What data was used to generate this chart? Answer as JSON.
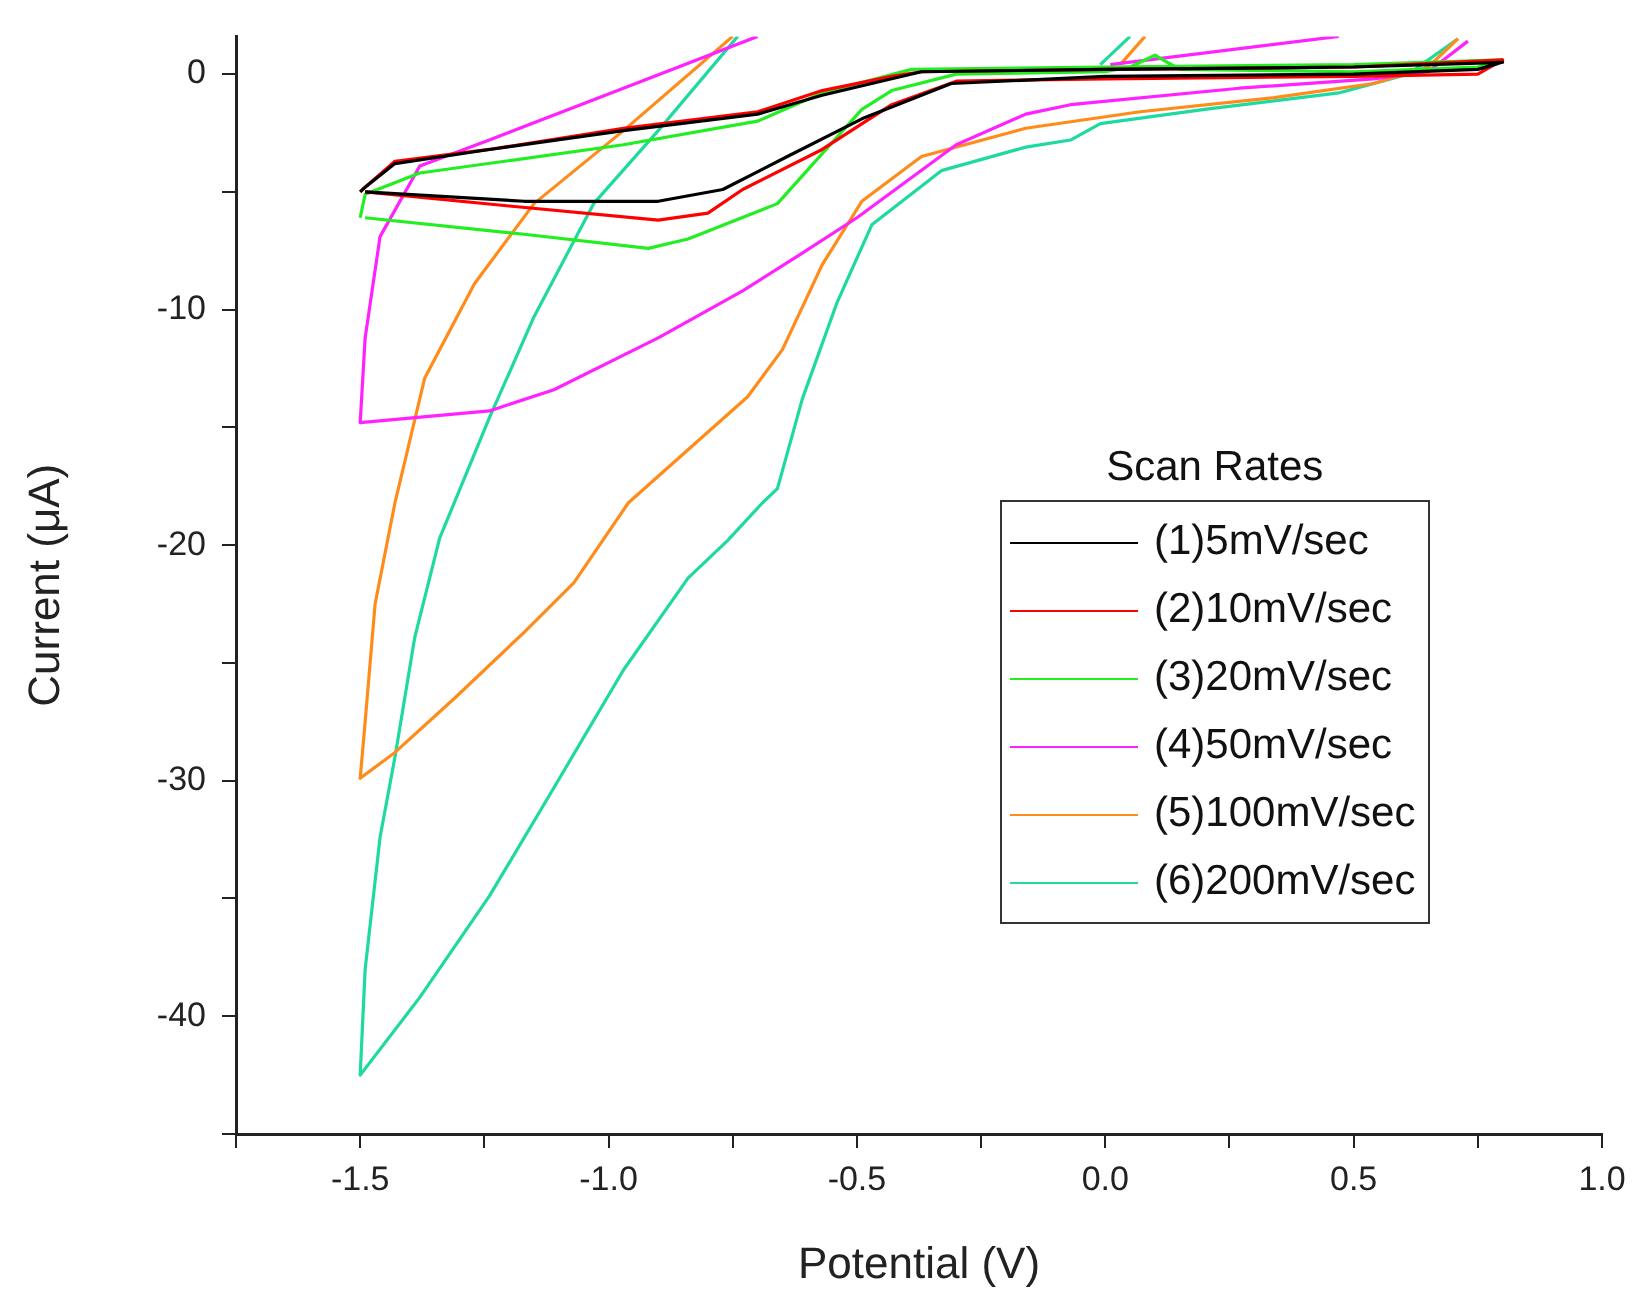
{
  "chart_data": {
    "type": "line",
    "xlabel": "Potential (V)",
    "ylabel": "Current (μA)",
    "legend_title": "Scan Rates",
    "legend": "right",
    "grid": false,
    "marker": "none",
    "line_style": "solid",
    "xlim": [
      -1.75,
      1.0
    ],
    "ylim": [
      -45,
      1.6
    ],
    "xticks": [
      {
        "value": -1.75,
        "label": null
      },
      -1.5,
      {
        "value": -1.25,
        "label": null
      },
      {
        "value": -1,
        "label": "-1.0"
      },
      {
        "value": -0.75,
        "label": null
      },
      -0.5,
      {
        "value": -0.25,
        "label": null
      },
      {
        "value": 0,
        "label": "0.0"
      },
      {
        "value": 0.25,
        "label": null
      },
      0.5,
      {
        "value": 0.75,
        "label": null
      },
      {
        "value": 1,
        "label": "1.0"
      }
    ],
    "yticks": [
      {
        "value": -45,
        "label": null
      },
      -40,
      {
        "value": -35,
        "label": null
      },
      -30,
      {
        "value": -25,
        "label": null
      },
      -20,
      {
        "value": -15,
        "label": null
      },
      -10,
      {
        "value": -5,
        "label": null
      },
      0
    ],
    "series": [
      {
        "name": "(1)5mV/sec",
        "color": "#000000",
        "x": [
          -1.5,
          -1.49,
          -1.43,
          -1.24,
          -0.97,
          -0.7,
          -0.57,
          -0.43,
          -0.37,
          0,
          0.5,
          0.8,
          0.75,
          0.5,
          0,
          -0.31,
          -0.49,
          -0.64,
          -0.77,
          -0.9,
          -1.17,
          -1.49
        ],
        "values": [
          -5.0,
          -4.8,
          -3.8,
          -3.2,
          -2.4,
          -1.7,
          -0.9,
          -0.2,
          0.1,
          0.2,
          0.3,
          0.5,
          0.2,
          0.0,
          -0.1,
          -0.4,
          -1.9,
          -3.5,
          -4.9,
          -5.4,
          -5.4,
          -5.0
        ]
      },
      {
        "name": "(2)10mV/sec",
        "color": "#ff0000",
        "x": [
          -1.5,
          -1.49,
          -1.43,
          -1.24,
          -0.97,
          -0.7,
          -0.57,
          -0.43,
          -0.37,
          0,
          0.5,
          0.8,
          0.75,
          0.5,
          0,
          -0.3,
          -0.43,
          -0.57,
          -0.73,
          -0.8,
          -0.9,
          -1.2,
          -1.49
        ],
        "values": [
          -5.0,
          -4.8,
          -3.7,
          -3.2,
          -2.3,
          -1.6,
          -0.7,
          -0.1,
          0.1,
          0.2,
          0.3,
          0.6,
          0.0,
          -0.1,
          -0.2,
          -0.3,
          -1.3,
          -3.2,
          -4.9,
          -5.9,
          -6.2,
          -5.6,
          -5.0
        ]
      },
      {
        "name": "(3)20mV/sec",
        "color": "#22ee22",
        "x": [
          -1.5,
          -1.49,
          -1.38,
          -0.97,
          -0.7,
          -0.57,
          -0.39,
          0,
          0.5,
          0.8,
          0.75,
          0.5,
          0.15,
          0.1,
          0.05,
          0,
          -0.3,
          -0.43,
          -0.49,
          -0.66,
          -0.84,
          -0.92,
          -1.17,
          -1.49
        ],
        "values": [
          -6.1,
          -5.1,
          -4.2,
          -3.0,
          -2.0,
          -0.8,
          0.2,
          0.3,
          0.4,
          0.6,
          0.3,
          0.1,
          0.2,
          0.8,
          0.3,
          0.1,
          0.0,
          -0.7,
          -1.5,
          -5.5,
          -7.0,
          -7.4,
          -6.8,
          -6.1
        ]
      },
      {
        "name": "(4)50mV/sec",
        "color": "#ff22ff",
        "x": [
          -0.7,
          -0.97,
          -1.24,
          -1.38,
          -1.46,
          -1.49,
          -1.5,
          -1.24,
          -1.11,
          -0.9,
          -0.73,
          -0.61,
          -0.5,
          -0.3,
          -0.16,
          -0.07,
          0.27,
          0.54,
          0.65,
          0.73
        ],
        "values": [
          1.6,
          -0.6,
          -2.8,
          -3.9,
          -6.9,
          -11.2,
          -14.8,
          -14.3,
          -13.4,
          -11.2,
          -9.2,
          -7.6,
          -6.1,
          -3.0,
          -1.7,
          -1.3,
          -0.6,
          -0.2,
          0.1,
          1.4
        ]
      },
      {
        "color": "#ff22ff",
        "x": [
          0.01,
          0.47
        ],
        "values": [
          0.4,
          1.6
        ]
      },
      {
        "name": "(5)100mV/sec",
        "color": "#ff8c1a",
        "x": [
          -0.75,
          -0.97,
          -1.15,
          -1.27,
          -1.37,
          -1.43,
          -1.47,
          -1.49,
          -1.5,
          -1.43,
          -1.31,
          -1.17,
          -1.07,
          -0.96,
          -0.72,
          -0.65,
          -0.57,
          -0.49,
          -0.37,
          -0.16,
          0.07,
          0.34,
          0.54,
          0.65,
          0.71
        ],
        "values": [
          1.6,
          -2.4,
          -5.5,
          -8.9,
          -12.9,
          -18.2,
          -22.5,
          -27.5,
          -29.9,
          -28.8,
          -26.5,
          -23.7,
          -21.6,
          -18.2,
          -13.7,
          -11.7,
          -8.1,
          -5.4,
          -3.5,
          -2.3,
          -1.6,
          -1.0,
          -0.4,
          0.3,
          1.5
        ]
      },
      {
        "color": "#ff8c1a",
        "x": [
          0.03,
          0.08
        ],
        "values": [
          0.4,
          1.6
        ]
      },
      {
        "name": "(6)200mV/sec",
        "color": "#1ed9a0",
        "x": [
          -0.74,
          -0.9,
          -1.03,
          -1.15,
          -1.24,
          -1.34,
          -1.39,
          -1.43,
          -1.46,
          -1.49,
          -1.5,
          -1.38,
          -1.24,
          -1.11,
          -0.97,
          -0.84,
          -0.76,
          -0.69,
          -0.66,
          -0.61,
          -0.54,
          -0.47,
          -0.33,
          -0.16,
          -0.07,
          -0.01,
          0.2,
          0.47,
          0.61,
          0.71
        ],
        "values": [
          1.6,
          -2.4,
          -5.5,
          -10.3,
          -14.6,
          -19.7,
          -23.9,
          -29.0,
          -32.4,
          -38.0,
          -42.5,
          -39.2,
          -34.9,
          -30.3,
          -25.3,
          -21.4,
          -19.8,
          -18.2,
          -17.6,
          -13.8,
          -9.7,
          -6.4,
          -4.1,
          -3.1,
          -2.8,
          -2.1,
          -1.5,
          -0.8,
          0.0,
          1.5
        ]
      },
      {
        "color": "#1ed9a0",
        "x": [
          -0.01,
          0.05
        ],
        "values": [
          0.4,
          1.6
        ]
      }
    ]
  }
}
